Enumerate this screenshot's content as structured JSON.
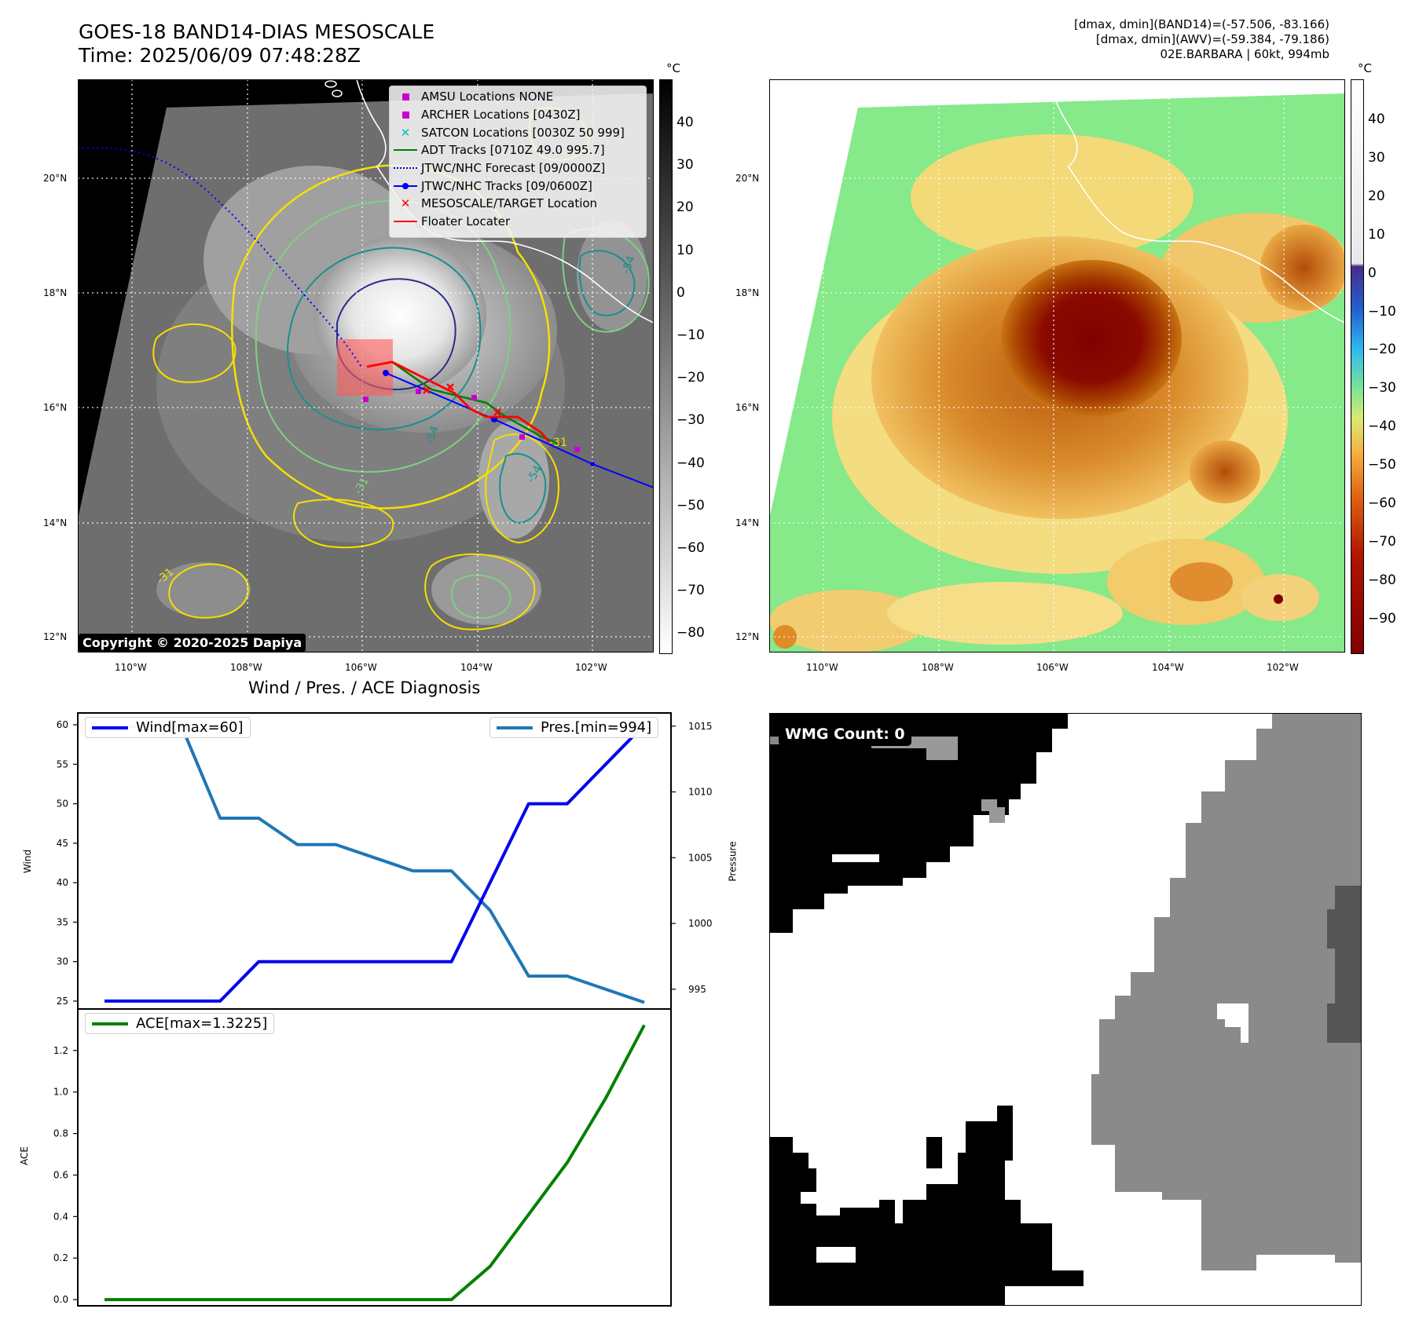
{
  "header": {
    "title_line1": "GOES-18 BAND14-DIAS MESOSCALE",
    "title_line2": "Time: 2025/06/09 07:48:28Z",
    "stats_line1": "[dmax, dmin](BAND14)=(-57.506, -83.166)",
    "stats_line2": "[dmax, dmin](AWV)=(-59.384, -79.186)",
    "stats_line3": "02E.BARBARA | 60kt, 994mb"
  },
  "map_left": {
    "lon_ticks": [
      "110°W",
      "108°W",
      "106°W",
      "104°W",
      "102°W"
    ],
    "lat_ticks": [
      "20°N",
      "18°N",
      "16°N",
      "14°N",
      "12°N"
    ],
    "copyright": "Copyright © 2020-2025 Dapiya",
    "legend": [
      {
        "label": "AMSU Locations NONE",
        "color": "#cc00cc",
        "symbol": "square"
      },
      {
        "label": "ARCHER Locations [0430Z]",
        "color": "#cc00cc",
        "symbol": "square"
      },
      {
        "label": "SATCON Locations [0030Z 50 999]",
        "color": "#00bfbf",
        "symbol": "x"
      },
      {
        "label": "ADT Tracks [0710Z 49.0 995.7]",
        "color": "#008000",
        "symbol": "line"
      },
      {
        "label": "JTWC/NHC Forecast [09/0000Z]",
        "color": "#0000ff",
        "symbol": "dotted"
      },
      {
        "label": "JTWC/NHC Tracks [09/0600Z]",
        "color": "#0000ff",
        "symbol": "line-dot"
      },
      {
        "label": "MESOSCALE/TARGET Location",
        "color": "#ff0000",
        "symbol": "x"
      },
      {
        "label": "Floater Locater",
        "color": "#ff0000",
        "symbol": "line"
      }
    ],
    "contour_labels": [
      "-54",
      "-54",
      "-31",
      "-31",
      "-54",
      "-31"
    ],
    "colorbar": {
      "unit": "°C",
      "ticks": [
        "40",
        "30",
        "20",
        "10",
        "0",
        "−10",
        "−20",
        "−30",
        "−40",
        "−50",
        "−60",
        "−70",
        "−80"
      ]
    }
  },
  "map_right": {
    "lon_ticks": [
      "110°W",
      "108°W",
      "106°W",
      "104°W",
      "102°W"
    ],
    "lat_ticks": [
      "20°N",
      "18°N",
      "16°N",
      "14°N",
      "12°N"
    ],
    "colorbar": {
      "unit": "°C",
      "ticks": [
        "40",
        "30",
        "20",
        "10",
        "0",
        "−10",
        "−20",
        "−30",
        "−40",
        "−50",
        "−60",
        "−70",
        "−80",
        "−90"
      ]
    }
  },
  "wmg": {
    "badge": "WMG Count: 0"
  },
  "chart_data": [
    {
      "type": "line",
      "title": "Wind / Pres. / ACE Diagnosis",
      "x": [
        0,
        1,
        2,
        3,
        4,
        5,
        6,
        7,
        8,
        9,
        10,
        11,
        12,
        13,
        14
      ],
      "series": [
        {
          "name": "Wind[max=60]",
          "axis": "left",
          "color": "#0000ee",
          "values": [
            25,
            25,
            25,
            25,
            30,
            30,
            30,
            30,
            30,
            30,
            40,
            50,
            50,
            55,
            60
          ]
        },
        {
          "name": "Pres.[min=994]",
          "axis": "right",
          "color": "#1f77b4",
          "values": [
            1015,
            1015,
            1015,
            1008,
            1008,
            1006,
            1006,
            1005,
            1004,
            1004,
            1001,
            996,
            996,
            995,
            994
          ]
        }
      ],
      "ylabel": "Wind",
      "ylabel_right": "Pressure",
      "ylim": [
        24,
        61.5
      ],
      "ylim_right": [
        993.5,
        1016
      ],
      "yticks": [
        25,
        30,
        35,
        40,
        45,
        50,
        55,
        60
      ],
      "yticks_right": [
        995,
        1000,
        1005,
        1010,
        1015
      ],
      "grid": false
    },
    {
      "type": "line",
      "x": [
        0,
        1,
        2,
        3,
        4,
        5,
        6,
        7,
        8,
        9,
        10,
        11,
        12,
        13,
        14
      ],
      "series": [
        {
          "name": "ACE[max=1.3225]",
          "color": "#008000",
          "values": [
            0,
            0,
            0,
            0,
            0,
            0,
            0,
            0,
            0,
            0,
            0.16,
            0.41,
            0.66,
            0.97,
            1.3225
          ]
        }
      ],
      "ylabel": "ACE",
      "ylim": [
        -0.03,
        1.4
      ],
      "yticks": [
        0.0,
        0.2,
        0.4,
        0.6,
        0.8,
        1.0,
        1.2
      ],
      "ytick_labels": [
        "0.0",
        "0.2",
        "0.4",
        "0.6",
        "0.8",
        "1.0",
        "1.2"
      ],
      "grid": false
    }
  ]
}
